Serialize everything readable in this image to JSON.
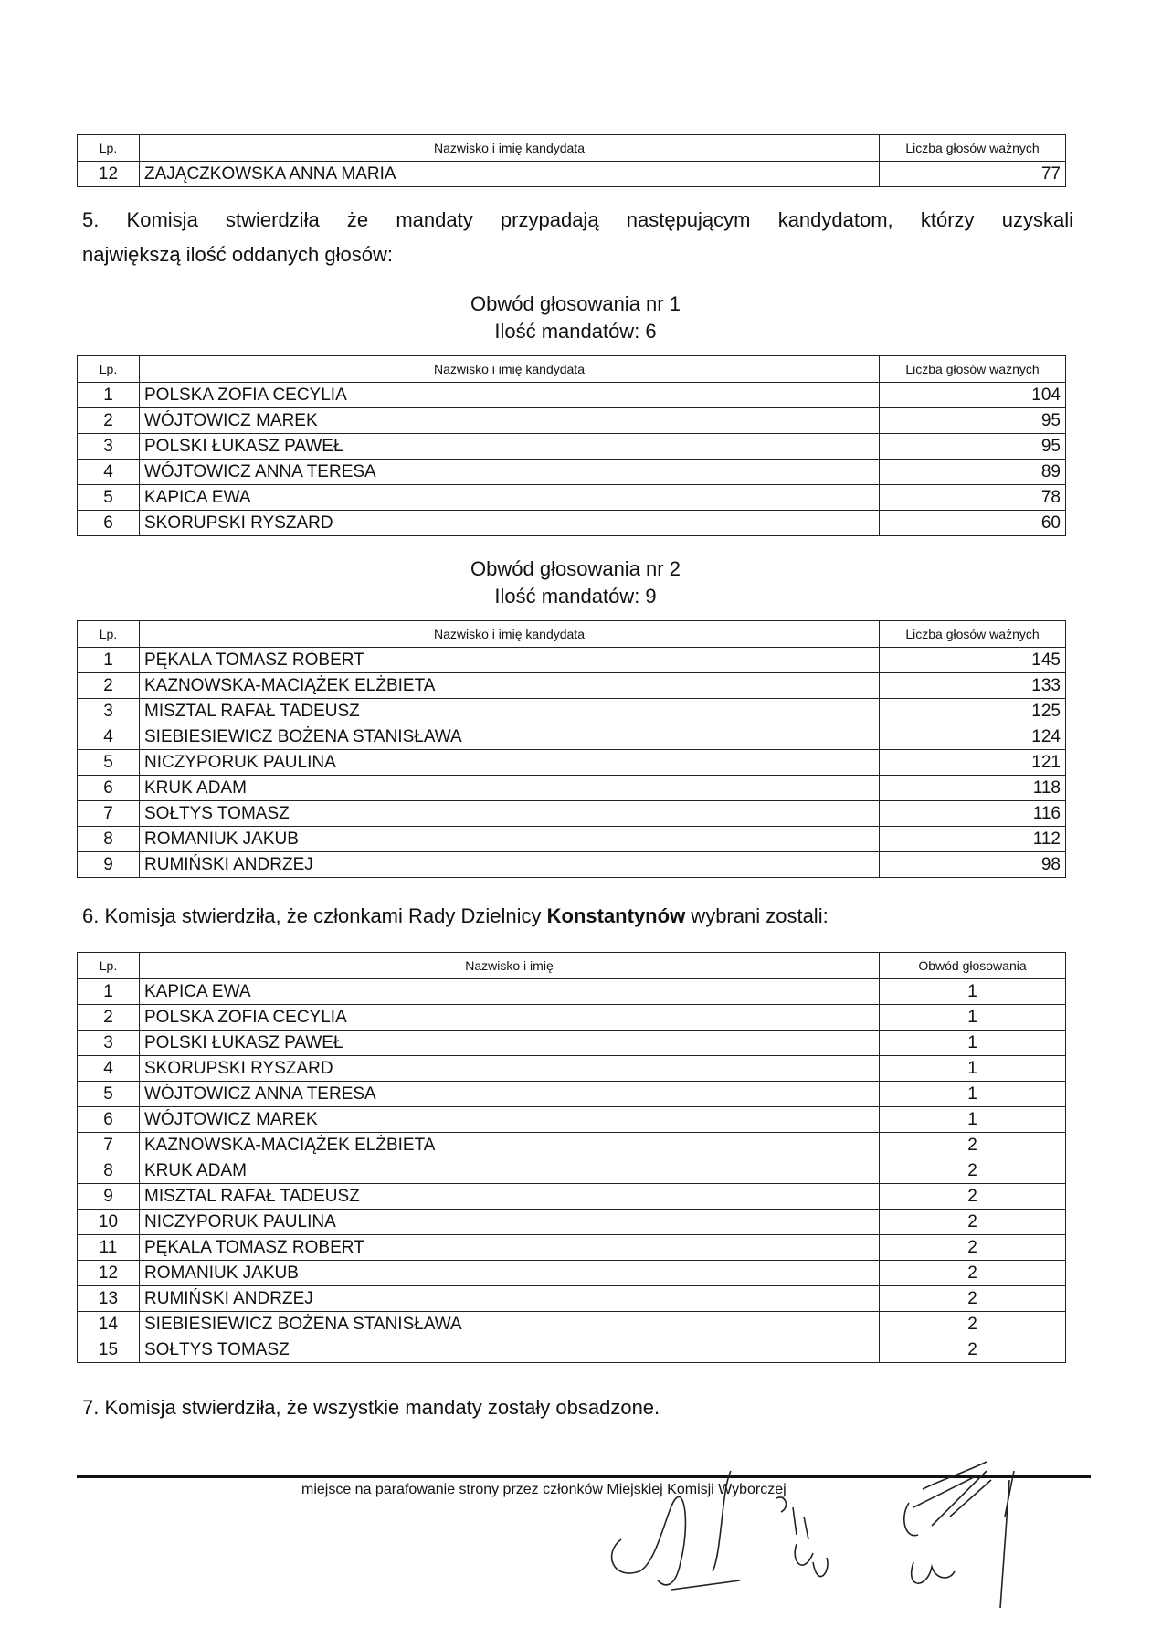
{
  "headers": {
    "lp": "Lp.",
    "candidate": "Nazwisko i imię kandydata",
    "votes": "Liczba głosów ważnych",
    "name": "Nazwisko i imię",
    "district": "Obwód głosowania"
  },
  "top_table": {
    "rows": [
      {
        "lp": "12",
        "name": "ZAJĄCZKOWSKA ANNA MARIA",
        "votes": "77"
      }
    ]
  },
  "section5": {
    "line1": "5. Komisja stwierdziła że mandaty przypadają następującym kandydatom, którzy uzyskali",
    "line2": "największą ilość oddanych głosów:"
  },
  "district1": {
    "title": "Obwód głosowania nr 1",
    "mandates": "Ilość mandatów: 6",
    "rows": [
      {
        "lp": "1",
        "name": "POLSKA ZOFIA CECYLIA",
        "votes": "104"
      },
      {
        "lp": "2",
        "name": "WÓJTOWICZ MAREK",
        "votes": "95"
      },
      {
        "lp": "3",
        "name": "POLSKI ŁUKASZ PAWEŁ",
        "votes": "95"
      },
      {
        "lp": "4",
        "name": "WÓJTOWICZ ANNA TERESA",
        "votes": "89"
      },
      {
        "lp": "5",
        "name": "KAPICA EWA",
        "votes": "78"
      },
      {
        "lp": "6",
        "name": "SKORUPSKI RYSZARD",
        "votes": "60"
      }
    ]
  },
  "district2": {
    "title": "Obwód głosowania nr 2",
    "mandates": "Ilość mandatów: 9",
    "rows": [
      {
        "lp": "1",
        "name": "PĘKALA TOMASZ ROBERT",
        "votes": "145"
      },
      {
        "lp": "2",
        "name": "KAZNOWSKA-MACIĄŻEK ELŻBIETA",
        "votes": "133"
      },
      {
        "lp": "3",
        "name": "MISZTAL RAFAŁ TADEUSZ",
        "votes": "125"
      },
      {
        "lp": "4",
        "name": "SIEBIESIEWICZ BOŻENA STANISŁAWA",
        "votes": "124"
      },
      {
        "lp": "5",
        "name": "NICZYPORUK PAULINA",
        "votes": "121"
      },
      {
        "lp": "6",
        "name": "KRUK ADAM",
        "votes": "118"
      },
      {
        "lp": "7",
        "name": "SOŁTYS TOMASZ",
        "votes": "116"
      },
      {
        "lp": "8",
        "name": "ROMANIUK JAKUB",
        "votes": "112"
      },
      {
        "lp": "9",
        "name": "RUMIŃSKI ANDRZEJ",
        "votes": "98"
      }
    ]
  },
  "section6": {
    "prefix": "6. Komisja stwierdziła, że członkami Rady Dzielnicy ",
    "district_name": "Konstantynów",
    "suffix": " wybrani zostali:",
    "rows": [
      {
        "lp": "1",
        "name": "KAPICA EWA",
        "district": "1"
      },
      {
        "lp": "2",
        "name": "POLSKA ZOFIA CECYLIA",
        "district": "1"
      },
      {
        "lp": "3",
        "name": "POLSKI ŁUKASZ PAWEŁ",
        "district": "1"
      },
      {
        "lp": "4",
        "name": "SKORUPSKI RYSZARD",
        "district": "1"
      },
      {
        "lp": "5",
        "name": "WÓJTOWICZ ANNA TERESA",
        "district": "1"
      },
      {
        "lp": "6",
        "name": "WÓJTOWICZ MAREK",
        "district": "1"
      },
      {
        "lp": "7",
        "name": "KAZNOWSKA-MACIĄŻEK ELŻBIETA",
        "district": "2"
      },
      {
        "lp": "8",
        "name": "KRUK ADAM",
        "district": "2"
      },
      {
        "lp": "9",
        "name": "MISZTAL RAFAŁ TADEUSZ",
        "district": "2"
      },
      {
        "lp": "10",
        "name": "NICZYPORUK PAULINA",
        "district": "2"
      },
      {
        "lp": "11",
        "name": "PĘKALA TOMASZ ROBERT",
        "district": "2"
      },
      {
        "lp": "12",
        "name": "ROMANIUK JAKUB",
        "district": "2"
      },
      {
        "lp": "13",
        "name": "RUMIŃSKI ANDRZEJ",
        "district": "2"
      },
      {
        "lp": "14",
        "name": "SIEBIESIEWICZ BOŻENA STANISŁAWA",
        "district": "2"
      },
      {
        "lp": "15",
        "name": "SOŁTYS TOMASZ",
        "district": "2"
      }
    ]
  },
  "section7": "7. Komisja stwierdziła, że wszystkie mandaty zostały obsadzone.",
  "footer": {
    "initials_caption": "miejsce na parafowanie strony przez członków Miejskiej Komisji Wyborczej",
    "signature_text": "Piot Popiel"
  }
}
